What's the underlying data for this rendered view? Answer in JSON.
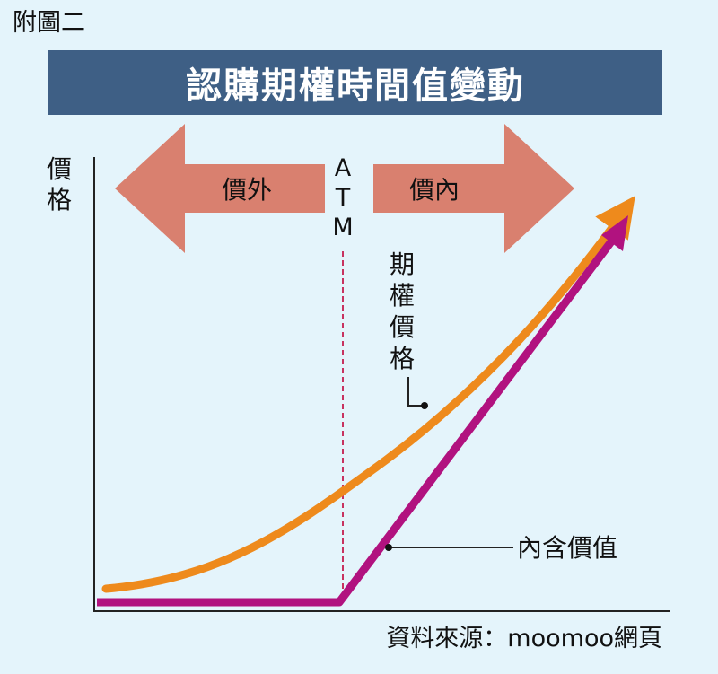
{
  "figure_label": "附圖二",
  "title": "認購期權時間值變動",
  "axis": {
    "y_label": [
      "價",
      "格"
    ]
  },
  "regions": {
    "left_arrow_label": "價外",
    "right_arrow_label": "價內",
    "center_label": [
      "A",
      "T",
      "M"
    ]
  },
  "annotations": {
    "option_price_label": [
      "期",
      "權",
      "價",
      "格"
    ],
    "intrinsic_value_label": "內含價值"
  },
  "source": "資料來源：moomoo網頁",
  "colors": {
    "background": "#e4f4fb",
    "banner": "#3e5f85",
    "region_arrows": "#d9806f",
    "option_price_curve": "#ee8a1c",
    "intrinsic_value_line": "#b1127f",
    "atm_line": "#c8325f"
  }
}
